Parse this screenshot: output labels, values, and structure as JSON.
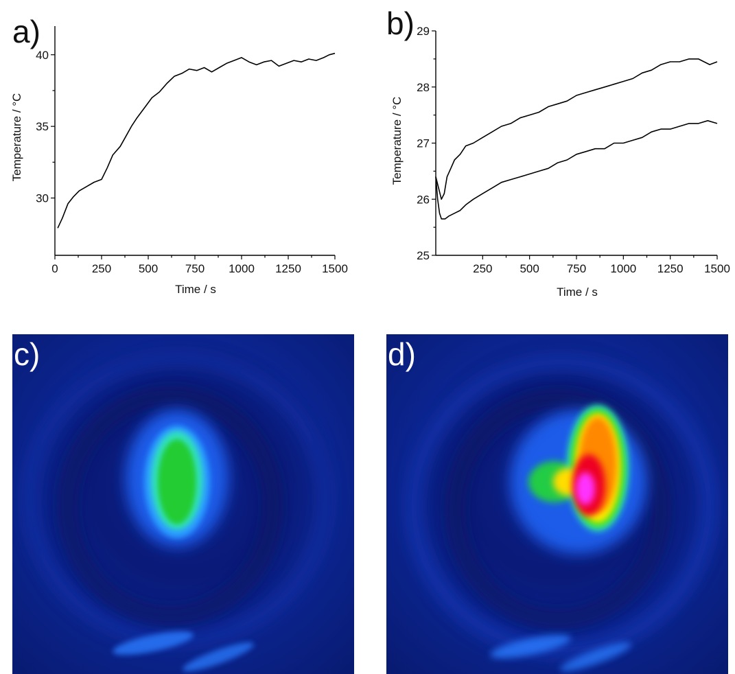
{
  "chart_data": [
    {
      "panel": "a)",
      "type": "line",
      "xlabel": "Time / s",
      "ylabel": "Temperature / °C",
      "xlim": [
        0,
        1500
      ],
      "ylim": [
        26,
        42
      ],
      "xticks": [
        0,
        250,
        500,
        750,
        1000,
        1250,
        1500
      ],
      "yticks": [
        30,
        35,
        40
      ],
      "series": [
        {
          "x": [
            15,
            40,
            70,
            100,
            130,
            170,
            210,
            250,
            280,
            310,
            350,
            380,
            410,
            440,
            480,
            520,
            560,
            600,
            640,
            680,
            720,
            760,
            800,
            840,
            880,
            920,
            960,
            1000,
            1040,
            1080,
            1120,
            1160,
            1200,
            1240,
            1280,
            1320,
            1360,
            1400,
            1440,
            1470,
            1500
          ],
          "y": [
            27.9,
            28.6,
            29.6,
            30.1,
            30.5,
            30.8,
            31.1,
            31.3,
            32.1,
            33.0,
            33.6,
            34.3,
            35.0,
            35.6,
            36.3,
            37.0,
            37.4,
            38.0,
            38.5,
            38.7,
            39.0,
            38.9,
            39.1,
            38.8,
            39.1,
            39.4,
            39.6,
            39.8,
            39.5,
            39.3,
            39.5,
            39.6,
            39.2,
            39.4,
            39.6,
            39.5,
            39.7,
            39.6,
            39.8,
            40.0,
            40.1
          ]
        }
      ]
    },
    {
      "panel": "b)",
      "type": "line",
      "xlabel": "Time / s",
      "ylabel": "Temperature / °C",
      "xlim": [
        0,
        1500
      ],
      "ylim": [
        25,
        29
      ],
      "xticks": [
        250,
        500,
        750,
        1000,
        1250,
        1500
      ],
      "yticks": [
        25,
        26,
        27,
        28,
        29
      ],
      "series": [
        {
          "x": [
            0,
            15,
            30,
            45,
            60,
            80,
            100,
            130,
            160,
            200,
            250,
            300,
            350,
            400,
            450,
            500,
            550,
            600,
            650,
            700,
            750,
            800,
            850,
            900,
            950,
            1000,
            1050,
            1100,
            1150,
            1200,
            1250,
            1300,
            1350,
            1400,
            1430,
            1460,
            1500
          ],
          "y": [
            26.4,
            26.2,
            26.0,
            26.1,
            26.4,
            26.55,
            26.7,
            26.8,
            26.95,
            27.0,
            27.1,
            27.2,
            27.3,
            27.35,
            27.45,
            27.5,
            27.55,
            27.65,
            27.7,
            27.75,
            27.85,
            27.9,
            27.95,
            28.0,
            28.05,
            28.1,
            28.15,
            28.25,
            28.3,
            28.4,
            28.45,
            28.45,
            28.5,
            28.5,
            28.45,
            28.4,
            28.45
          ]
        },
        {
          "x": [
            0,
            10,
            20,
            30,
            50,
            70,
            100,
            130,
            160,
            200,
            250,
            300,
            350,
            400,
            450,
            500,
            550,
            600,
            650,
            700,
            750,
            800,
            850,
            900,
            950,
            1000,
            1050,
            1100,
            1150,
            1200,
            1250,
            1300,
            1350,
            1400,
            1450,
            1500
          ],
          "y": [
            26.4,
            26.0,
            25.75,
            25.65,
            25.65,
            25.7,
            25.75,
            25.8,
            25.9,
            26.0,
            26.1,
            26.2,
            26.3,
            26.35,
            26.4,
            26.45,
            26.5,
            26.55,
            26.65,
            26.7,
            26.8,
            26.85,
            26.9,
            26.9,
            27.0,
            27.0,
            27.05,
            27.1,
            27.2,
            27.25,
            27.25,
            27.3,
            27.35,
            27.35,
            27.4,
            27.35
          ]
        }
      ]
    }
  ],
  "thermal_images": [
    {
      "panel": "c)",
      "colormap": [
        "#0a1466",
        "#1e3cc8",
        "#2a8cff",
        "#33ffcc",
        "#22dd22"
      ]
    },
    {
      "panel": "d)",
      "colormap": [
        "#0a1466",
        "#1e3cc8",
        "#2a8cff",
        "#22dd22",
        "#ffff00",
        "#ff8800",
        "#ee0022",
        "#ff33ff"
      ]
    }
  ]
}
